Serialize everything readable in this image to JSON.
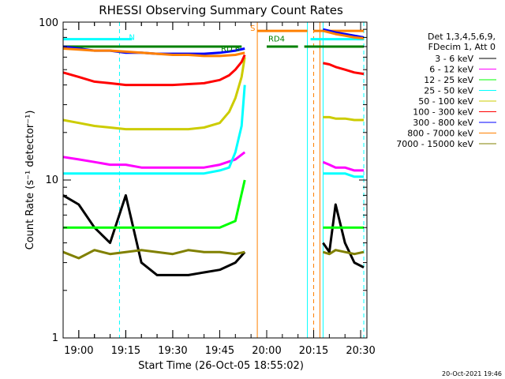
{
  "chart_data": {
    "type": "line",
    "title": "RHESSI Observing Summary Count Rates",
    "xlabel": "Start Time (26-Oct-05 18:55:02)",
    "ylabel": "Count Rate (s⁻¹ detector⁻¹)",
    "yscale": "log",
    "ylim": [
      1,
      100
    ],
    "xlim": [
      "18:55",
      "20:32"
    ],
    "x_tick_labels": [
      "19:00",
      "19:15",
      "19:30",
      "19:45",
      "20:00",
      "20:15",
      "20:30"
    ],
    "y_tick_labels": [
      "1",
      "10",
      "100"
    ],
    "grid": false,
    "legend_position": "right",
    "legend_header": [
      "Det 1,3,4,5,6,9,",
      "FDecim 1, Att 0"
    ],
    "footer_stamp": "20-Oct-2021 19:46",
    "series": [
      {
        "name": "3 - 6 keV",
        "color": "#000000",
        "x": [
          "18:55",
          "19:00",
          "19:05",
          "19:10",
          "19:15",
          "19:20",
          "19:25",
          "19:30",
          "19:35",
          "19:40",
          "19:45",
          "19:50",
          "19:53",
          "20:18",
          "20:20",
          "20:22",
          "20:25",
          "20:28",
          "20:31"
        ],
        "y": [
          8,
          7,
          5,
          4,
          8,
          3,
          2.5,
          2.5,
          2.5,
          2.6,
          2.7,
          3,
          3.5,
          4,
          3.5,
          7,
          4,
          3,
          2.8
        ]
      },
      {
        "name": "6 - 12 keV",
        "color": "#ff00ff",
        "x": [
          "18:55",
          "19:00",
          "19:05",
          "19:10",
          "19:15",
          "19:20",
          "19:25",
          "19:30",
          "19:35",
          "19:40",
          "19:45",
          "19:50",
          "19:53",
          "20:18",
          "20:20",
          "20:22",
          "20:25",
          "20:28",
          "20:31"
        ],
        "y": [
          14,
          13.5,
          13,
          12.5,
          12.5,
          12,
          12,
          12,
          12,
          12,
          12.5,
          13.5,
          15,
          13,
          12.5,
          12,
          12,
          11.5,
          11.5
        ]
      },
      {
        "name": "12 - 25 keV",
        "color": "#00ff00",
        "x": [
          "18:55",
          "19:00",
          "19:05",
          "19:10",
          "19:15",
          "19:20",
          "19:25",
          "19:30",
          "19:35",
          "19:40",
          "19:45",
          "19:50",
          "19:53",
          "20:18",
          "20:20",
          "20:22",
          "20:25",
          "20:28",
          "20:31"
        ],
        "y": [
          5,
          5,
          5,
          5,
          5,
          5,
          5,
          5,
          5,
          5,
          5,
          5.5,
          10,
          5,
          5,
          5,
          5,
          5,
          5
        ]
      },
      {
        "name": "25 - 50 keV",
        "color": "#00ffff",
        "x": [
          "18:55",
          "19:00",
          "19:05",
          "19:10",
          "19:15",
          "19:20",
          "19:25",
          "19:30",
          "19:35",
          "19:40",
          "19:45",
          "19:48",
          "19:50",
          "19:52",
          "19:53",
          "20:18",
          "20:20",
          "20:22",
          "20:25",
          "20:28",
          "20:31"
        ],
        "y": [
          11,
          11,
          11,
          11,
          11,
          11,
          11,
          11,
          11,
          11,
          11.5,
          12,
          15,
          22,
          40,
          11,
          11,
          11,
          11,
          10.5,
          10.5
        ]
      },
      {
        "name": "50 - 100 keV",
        "color": "#cccc00",
        "x": [
          "18:55",
          "19:00",
          "19:05",
          "19:10",
          "19:15",
          "19:20",
          "19:25",
          "19:30",
          "19:35",
          "19:40",
          "19:45",
          "19:48",
          "19:50",
          "19:52",
          "19:53",
          "20:18",
          "20:20",
          "20:22",
          "20:25",
          "20:28",
          "20:31"
        ],
        "y": [
          24,
          23,
          22,
          21.5,
          21,
          21,
          21,
          21,
          21,
          21.5,
          23,
          27,
          33,
          45,
          60,
          25,
          25,
          24.5,
          24.5,
          24,
          24
        ]
      },
      {
        "name": "100 - 300 keV",
        "color": "#ff0000",
        "x": [
          "18:55",
          "19:00",
          "19:05",
          "19:10",
          "19:15",
          "19:20",
          "19:25",
          "19:30",
          "19:35",
          "19:40",
          "19:45",
          "19:48",
          "19:50",
          "19:52",
          "19:53",
          "20:18",
          "20:20",
          "20:22",
          "20:25",
          "20:28",
          "20:31"
        ],
        "y": [
          48,
          45,
          42,
          41,
          40,
          40,
          40,
          40,
          40.5,
          41,
          43,
          46,
          50,
          56,
          62,
          55,
          54,
          52,
          50,
          48,
          47
        ]
      },
      {
        "name": "300 - 800 keV",
        "color": "#0000ff",
        "x": [
          "18:55",
          "19:00",
          "19:05",
          "19:10",
          "19:15",
          "19:20",
          "19:25",
          "19:30",
          "19:35",
          "19:40",
          "19:45",
          "19:50",
          "19:53",
          "20:18",
          "20:20",
          "20:22",
          "20:25",
          "20:28",
          "20:31"
        ],
        "y": [
          70,
          68,
          66,
          66,
          64,
          64,
          63,
          63,
          63,
          63,
          64,
          66,
          68,
          90,
          88,
          86,
          84,
          82,
          80
        ]
      },
      {
        "name": "800 - 7000 keV",
        "color": "#ff8000",
        "x": [
          "18:55",
          "19:00",
          "19:05",
          "19:10",
          "19:15",
          "19:20",
          "19:25",
          "19:30",
          "19:35",
          "19:40",
          "19:45",
          "19:50",
          "19:53",
          "20:18",
          "20:20",
          "20:22",
          "20:25",
          "20:28",
          "20:31"
        ],
        "y": [
          68,
          67,
          66,
          66,
          65,
          64,
          63,
          62,
          62,
          61,
          61,
          62,
          64,
          88,
          86,
          84,
          82,
          80,
          79
        ]
      },
      {
        "name": "7000 - 15000 keV",
        "color": "#808000",
        "x": [
          "18:55",
          "19:00",
          "19:05",
          "19:10",
          "19:15",
          "19:20",
          "19:25",
          "19:30",
          "19:35",
          "19:40",
          "19:45",
          "19:50",
          "19:53",
          "20:18",
          "20:20",
          "20:22",
          "20:25",
          "20:28",
          "20:31"
        ],
        "y": [
          3.5,
          3.2,
          3.6,
          3.4,
          3.5,
          3.6,
          3.5,
          3.4,
          3.6,
          3.5,
          3.5,
          3.4,
          3.5,
          3.5,
          3.4,
          3.6,
          3.5,
          3.4,
          3.5
        ]
      }
    ],
    "annotations": [
      {
        "text": "N",
        "color": "#00ffff"
      },
      {
        "text": "RD4",
        "color": "#008000"
      },
      {
        "text": "RD 6",
        "color": "#008000"
      },
      {
        "text": "S",
        "color": "#ff8000"
      }
    ],
    "state_bars": [
      {
        "label": "N",
        "color": "#00ffff",
        "level": 78,
        "segments": [
          [
            "18:55",
            "19:17"
          ],
          [
            "20:14",
            "20:31"
          ]
        ]
      },
      {
        "label": "RD",
        "color": "#008000",
        "level": 70,
        "segments": [
          [
            "18:55",
            "19:52"
          ],
          [
            "20:00",
            "20:10"
          ],
          [
            "20:12",
            "20:31"
          ]
        ]
      },
      {
        "label": "S",
        "color": "#ff8000",
        "level": 88,
        "segments": [
          [
            "19:57",
            "20:13"
          ],
          [
            "20:15",
            "20:31"
          ]
        ]
      }
    ],
    "vertical_markers": [
      {
        "x": "19:13",
        "color": "#00ffff",
        "style": "dashed"
      },
      {
        "x": "19:57",
        "color": "#ff8000",
        "style": "solid"
      },
      {
        "x": "20:13",
        "color": "#00ffff",
        "style": "solid"
      },
      {
        "x": "20:15",
        "color": "#ff8000",
        "style": "dashed"
      },
      {
        "x": "20:17",
        "color": "#ff8000",
        "style": "solid"
      },
      {
        "x": "20:18",
        "color": "#00ffff",
        "style": "solid"
      },
      {
        "x": "20:31",
        "color": "#00ffff",
        "style": "dashed"
      }
    ]
  }
}
